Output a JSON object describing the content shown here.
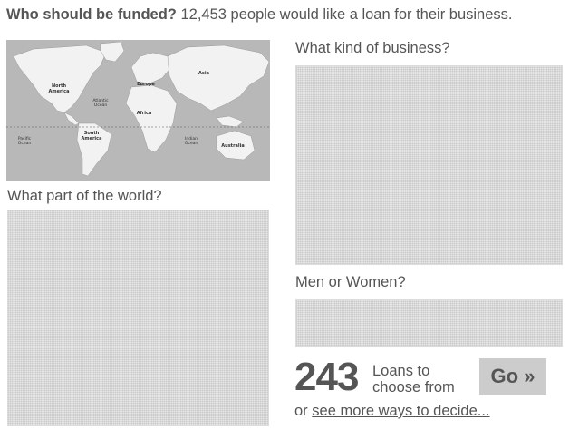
{
  "header": {
    "question": "Who should be funded?",
    "statement": "12,453 people would like a loan for their business."
  },
  "map": {
    "labels": {
      "north_america": [
        "North",
        "America"
      ],
      "atlantic": [
        "Atlantic",
        "Ocean"
      ],
      "europe": "Europe",
      "asia": "Asia",
      "africa": "Africa",
      "south_america": [
        "South",
        "America"
      ],
      "pacific": [
        "Pacific",
        "Ocean"
      ],
      "indian": [
        "Indian",
        "Ocean"
      ],
      "australia": "Australia"
    }
  },
  "sections": {
    "region": "What part of the world?",
    "business": "What kind of business?",
    "gender": "Men or Women?"
  },
  "summary": {
    "count": "243",
    "caption_line1": "Loans to",
    "caption_line2": "choose from",
    "go_label": "Go »",
    "more_prefix": "or",
    "more_link": "see more ways to decide..."
  },
  "colors": {
    "text": "#555555",
    "ocean": "#b8b8b8",
    "land": "#f2f2f2",
    "button": "#cccccc"
  }
}
